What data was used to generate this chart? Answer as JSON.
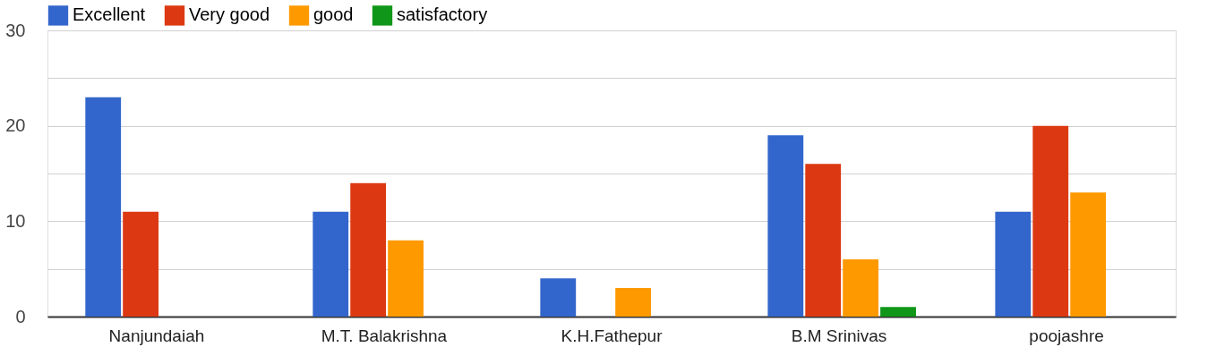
{
  "chart_data": {
    "type": "bar",
    "categories": [
      "Nanjundaiah",
      "M.T. Balakrishna",
      "K.H.Fathepur",
      "B.M Srinivas",
      "poojashre"
    ],
    "series": [
      {
        "name": "Excellent",
        "color": "#3366cc",
        "values": [
          23,
          11,
          4,
          19,
          11
        ]
      },
      {
        "name": "Very good",
        "color": "#dc3912",
        "values": [
          11,
          14,
          0,
          16,
          20
        ]
      },
      {
        "name": "good",
        "color": "#ff9900",
        "values": [
          0,
          8,
          3,
          6,
          13
        ]
      },
      {
        "name": "satisfactory",
        "color": "#109618",
        "values": [
          0,
          0,
          0,
          1,
          null
        ]
      }
    ],
    "ylim": [
      0,
      30
    ],
    "yticks": [
      0,
      {
        "value": 5,
        "label": null
      },
      10,
      {
        "value": 15,
        "label": null
      },
      20,
      {
        "value": 25,
        "label": null
      },
      30
    ],
    "grid": true,
    "legend": "top left"
  }
}
